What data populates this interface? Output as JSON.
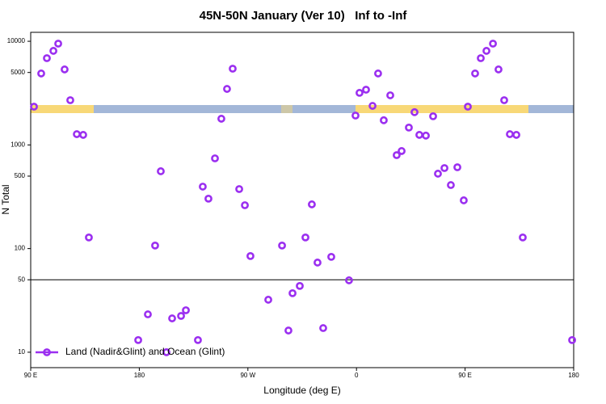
{
  "chart_data": {
    "type": "scatter",
    "title": "45N-50N January (Ver 10)   Inf to -Inf",
    "x_label": "Longitude (deg E)",
    "y_label": "N Total",
    "log_y": true,
    "xlim": [
      90,
      540
    ],
    "ylim": [
      7.1,
      12200
    ],
    "xticks": [
      {
        "value": 90,
        "label": "90 E"
      },
      180,
      {
        "value": 270,
        "label": "90 W"
      },
      {
        "value": 360,
        "label": "0"
      },
      {
        "value": 450,
        "label": "90 E"
      },
      {
        "value": 540,
        "label": "180"
      }
    ],
    "yticks": [
      10,
      50,
      100,
      500,
      1000,
      5000,
      10000
    ],
    "hline": 50,
    "legend": "bottom-left",
    "x": [
      92.7,
      98.7,
      103.4,
      108.8,
      112.8,
      118.1,
      122.8,
      128.2,
      133.5,
      138.2,
      179.1,
      187.1,
      193.1,
      197.8,
      202.5,
      207.2,
      214.6,
      218.6,
      228.6,
      232.6,
      237.3,
      242.7,
      248.0,
      252.7,
      257.4,
      262.8,
      267.5,
      272.1,
      286.9,
      298.3,
      303.6,
      307.0,
      313.0,
      317.7,
      323.0,
      327.7,
      332.4,
      339.1,
      353.8,
      359.2,
      362.5,
      367.9,
      373.3,
      377.9,
      382.6,
      388.0,
      393.3,
      397.4,
      403.4,
      408.1,
      412.1,
      417.5,
      423.5,
      427.5,
      432.9,
      438.2,
      443.6,
      448.9,
      452.3,
      458.3,
      463.0,
      467.7,
      473.1,
      477.7,
      482.4,
      487.1,
      492.5,
      497.8,
      538.7
    ],
    "series": [
      {
        "name": "Land (Nadir&Glint) and Ocean (Glint)",
        "color": "#9b2ff0",
        "values": [
          2340,
          4890,
          6870,
          8080,
          9490,
          5350,
          2700,
          1270,
          1250,
          128,
          13.1,
          23.2,
          107,
          557,
          10,
          21.2,
          22.4,
          25.4,
          13.1,
          396,
          303,
          742,
          1790,
          3470,
          5440,
          375,
          262,
          84.7,
          32.1,
          107,
          16.2,
          37.1,
          43.6,
          128,
          267,
          73.3,
          17.1,
          83.2,
          49.4,
          1920,
          3180,
          3410,
          2380,
          4890,
          1730,
          3010,
          797,
          873,
          1470,
          2070,
          1250,
          1230,
          1890,
          528,
          598,
          410,
          609,
          292,
          2340,
          4890,
          6870,
          8080,
          9490,
          5350,
          2700,
          1270,
          1250,
          128,
          13.1
        ]
      }
    ]
  }
}
